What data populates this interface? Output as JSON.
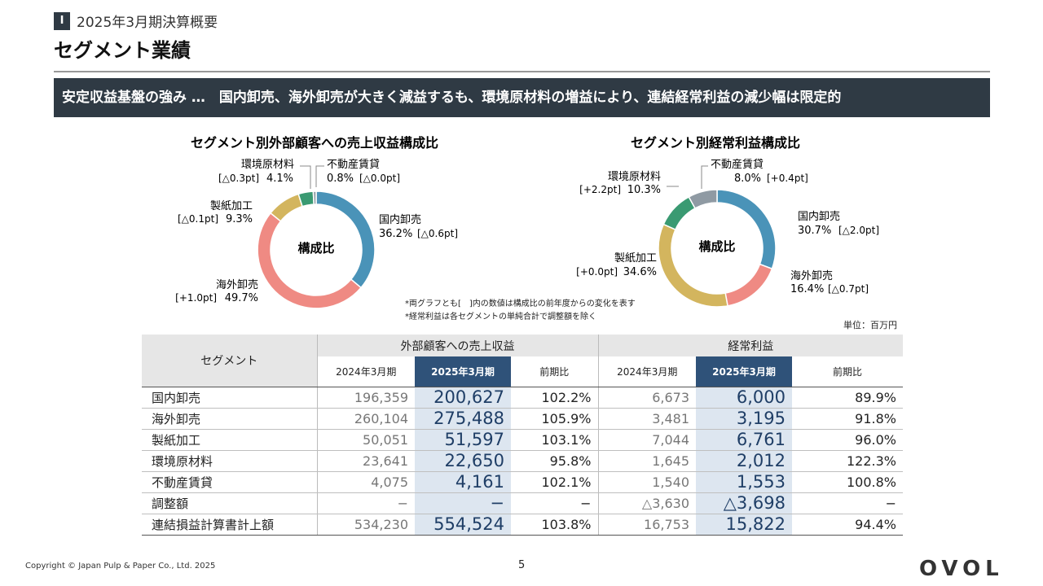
{
  "header": {
    "section_number": "Ⅰ",
    "section_title": "2025年3月期決算概要",
    "page_title": "セグメント業績"
  },
  "banner": "安定収益基盤の強み …　国内卸売、海外卸売が大きく減益するも、環境原材料の増益により、連結経常利益の減少幅は限定的",
  "colors": {
    "domestic": "#4a93b8",
    "overseas": "#ef8a83",
    "paper": "#d3b55e",
    "env": "#3a9a72",
    "realestate": "#8f9aa3",
    "navy": "#2f5279",
    "dark": "#2f3a44"
  },
  "chart_data": [
    {
      "type": "pie",
      "title": "セグメント別外部顧客への売上収益構成比",
      "center_label": "構成比",
      "slices": [
        {
          "name": "国内卸売",
          "value": 36.2,
          "value_label": "36.2%",
          "change": "[△0.6pt]"
        },
        {
          "name": "海外卸売",
          "value": 49.7,
          "value_label": "49.7%",
          "change": "[+1.0pt]"
        },
        {
          "name": "製紙加工",
          "value": 9.3,
          "value_label": "9.3%",
          "change": "[△0.1pt]"
        },
        {
          "name": "環境原材料",
          "value": 4.1,
          "value_label": "4.1%",
          "change": "[△0.3pt]"
        },
        {
          "name": "不動産賃貸",
          "value": 0.8,
          "value_label": "0.8%",
          "change": "[△0.0pt]"
        }
      ]
    },
    {
      "type": "pie",
      "title": "セグメント別経常利益構成比",
      "center_label": "構成比",
      "slices": [
        {
          "name": "国内卸売",
          "value": 30.7,
          "value_label": "30.7%",
          "change": "[△2.0pt]"
        },
        {
          "name": "海外卸売",
          "value": 16.4,
          "value_label": "16.4%",
          "change": "[△0.7pt]"
        },
        {
          "name": "製紙加工",
          "value": 34.6,
          "value_label": "34.6%",
          "change": "[+0.0pt]"
        },
        {
          "name": "環境原材料",
          "value": 10.3,
          "value_label": "10.3%",
          "change": "[+2.2pt]"
        },
        {
          "name": "不動産賃貸",
          "value": 8.0,
          "value_label": "8.0%",
          "change": "[+0.4pt]"
        }
      ]
    },
    {
      "type": "table",
      "unit": "単位：百万円",
      "header_segment": "セグメント",
      "group_sales": "外部顧客への売上収益",
      "group_profit": "経常利益",
      "col_prev": "2024年3月期",
      "col_cur": "2025年3月期",
      "col_ratio": "前期比",
      "rows": [
        {
          "name": "国内卸売",
          "s_prev": "196,359",
          "s_cur": "200,627",
          "s_ratio": "102.2%",
          "p_prev": "6,673",
          "p_cur": "6,000",
          "p_ratio": "89.9%"
        },
        {
          "name": "海外卸売",
          "s_prev": "260,104",
          "s_cur": "275,488",
          "s_ratio": "105.9%",
          "p_prev": "3,481",
          "p_cur": "3,195",
          "p_ratio": "91.8%"
        },
        {
          "name": "製紙加工",
          "s_prev": "50,051",
          "s_cur": "51,597",
          "s_ratio": "103.1%",
          "p_prev": "7,044",
          "p_cur": "6,761",
          "p_ratio": "96.0%"
        },
        {
          "name": "環境原材料",
          "s_prev": "23,641",
          "s_cur": "22,650",
          "s_ratio": "95.8%",
          "p_prev": "1,645",
          "p_cur": "2,012",
          "p_ratio": "122.3%"
        },
        {
          "name": "不動産賃貸",
          "s_prev": "4,075",
          "s_cur": "4,161",
          "s_ratio": "102.1%",
          "p_prev": "1,540",
          "p_cur": "1,553",
          "p_ratio": "100.8%"
        },
        {
          "name": "調整額",
          "s_prev": "−",
          "s_cur": "−",
          "s_ratio": "−",
          "p_prev": "△3,630",
          "p_cur": "△3,698",
          "p_ratio": "−"
        },
        {
          "name": "連結損益計算書計上額",
          "s_prev": "534,230",
          "s_cur": "554,524",
          "s_ratio": "103.8%",
          "p_prev": "16,753",
          "p_cur": "15,822",
          "p_ratio": "94.4%"
        }
      ]
    }
  ],
  "notes": [
    "*両グラフとも[　]内の数値は構成比の前年度からの変化を表す",
    "*経常利益は各セグメントの単純合計で調整額を除く"
  ],
  "footer": {
    "copyright": "Copyright © Japan Pulp & Paper Co., Ltd. 2025",
    "page_number": "5",
    "logo_text": "OVOL"
  }
}
